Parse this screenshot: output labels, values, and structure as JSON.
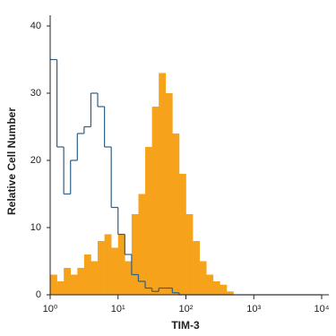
{
  "chart_data": {
    "type": "histogram",
    "x_label": "TIM-3",
    "y_label": "Relative Cell Number",
    "xscale": "log",
    "bins": [
      1,
      1.259,
      1.585,
      1.995,
      2.512,
      3.162,
      3.981,
      5.012,
      6.31,
      7.943,
      10,
      12.59,
      15.85,
      19.95,
      25.12,
      31.62,
      39.81,
      50.12,
      63.1,
      79.43,
      100,
      125.9,
      158.5,
      199.5,
      251.2,
      316.2,
      398.1,
      501.2,
      631,
      794.3,
      1000,
      1259,
      1585,
      1995,
      2512,
      3162,
      3981,
      5012,
      6310,
      7943,
      10000
    ],
    "series": [
      {
        "color": "#f7a21b",
        "filled": true,
        "values": [
          3,
          2,
          4,
          3,
          4,
          6,
          5,
          8,
          9,
          7,
          9,
          5,
          12,
          15,
          22,
          28,
          33,
          30,
          24,
          18,
          12,
          8,
          5,
          3,
          2,
          1.5,
          0.5,
          0,
          0,
          0,
          0,
          0,
          0,
          0,
          0,
          0,
          0,
          0,
          0,
          0
        ]
      },
      {
        "color": "#2e5f86",
        "filled": false,
        "values": [
          35,
          22,
          15,
          20,
          24,
          25,
          30,
          28,
          22,
          13,
          9,
          6,
          3,
          2,
          1,
          0.5,
          1,
          1,
          0.3,
          0,
          0,
          0,
          0,
          0,
          0,
          0,
          0,
          0,
          0,
          0,
          0,
          0,
          0,
          0,
          0,
          0,
          0,
          0,
          0,
          0
        ]
      }
    ],
    "xlim": [
      1,
      10000
    ],
    "xticks": [
      {
        "value": 1,
        "label": "10⁰"
      },
      {
        "value": 10,
        "label": "10¹"
      },
      {
        "value": 100,
        "label": "10²"
      },
      {
        "value": 1000,
        "label": "10³"
      },
      {
        "value": 10000,
        "label": "10⁴"
      }
    ],
    "ylim": [
      0,
      40
    ],
    "yticks": [
      0,
      10,
      20,
      30,
      40
    ]
  }
}
